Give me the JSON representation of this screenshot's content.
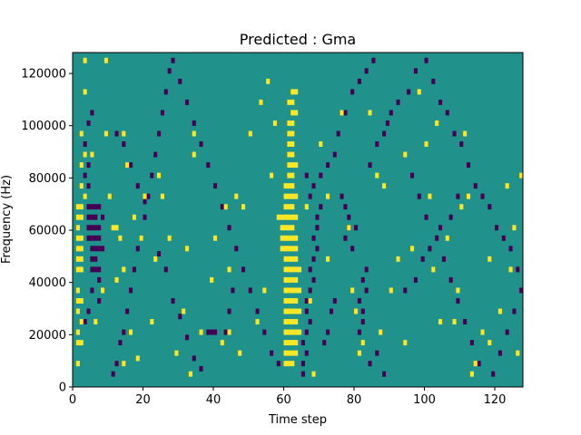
{
  "chart_data": {
    "type": "heatmap",
    "title": "Predicted : Gma",
    "xlabel": "Time step",
    "ylabel": "Frequency (Hz)",
    "xlim": [
      0,
      128
    ],
    "ylim": [
      0,
      128000
    ],
    "x_ticks": [
      0,
      20,
      40,
      60,
      80,
      100,
      120
    ],
    "y_ticks": [
      0,
      20000,
      40000,
      60000,
      80000,
      100000,
      120000
    ],
    "y_tick_labels": [
      "0",
      "20000",
      "40000",
      "60000",
      "80000",
      "100000",
      "120000"
    ],
    "grid": false,
    "value_levels": [
      -1,
      0,
      1
    ],
    "colormap": "viridis",
    "colors": {
      "low": "#440154",
      "mid": "#21918c",
      "high": "#fde725"
    },
    "background_value": 0,
    "rows": 64,
    "cols": 128,
    "cell_height_hz": 2000,
    "high_cells": [
      [
        60,
        4
      ],
      [
        61,
        4
      ],
      [
        62,
        4
      ],
      [
        60,
        6
      ],
      [
        61,
        6
      ],
      [
        62,
        6
      ],
      [
        63,
        6
      ],
      [
        60,
        8
      ],
      [
        61,
        8
      ],
      [
        62,
        8
      ],
      [
        63,
        8
      ],
      [
        60,
        10
      ],
      [
        61,
        10
      ],
      [
        62,
        10
      ],
      [
        63,
        10
      ],
      [
        64,
        10
      ],
      [
        60,
        12
      ],
      [
        61,
        12
      ],
      [
        62,
        12
      ],
      [
        63,
        12
      ],
      [
        60,
        14
      ],
      [
        61,
        14
      ],
      [
        62,
        14
      ],
      [
        63,
        14
      ],
      [
        64,
        14
      ],
      [
        60,
        16
      ],
      [
        61,
        16
      ],
      [
        62,
        16
      ],
      [
        63,
        16
      ],
      [
        60,
        18
      ],
      [
        61,
        18
      ],
      [
        62,
        18
      ],
      [
        63,
        18
      ],
      [
        64,
        18
      ],
      [
        60,
        20
      ],
      [
        61,
        20
      ],
      [
        62,
        20
      ],
      [
        63,
        20
      ],
      [
        60,
        22
      ],
      [
        61,
        22
      ],
      [
        62,
        22
      ],
      [
        63,
        22
      ],
      [
        64,
        22
      ],
      [
        60,
        24
      ],
      [
        61,
        24
      ],
      [
        62,
        24
      ],
      [
        63,
        24
      ],
      [
        59,
        26
      ],
      [
        60,
        26
      ],
      [
        61,
        26
      ],
      [
        62,
        26
      ],
      [
        63,
        26
      ],
      [
        59,
        28
      ],
      [
        60,
        28
      ],
      [
        61,
        28
      ],
      [
        62,
        28
      ],
      [
        63,
        28
      ],
      [
        59,
        30
      ],
      [
        60,
        30
      ],
      [
        61,
        30
      ],
      [
        62,
        30
      ],
      [
        59,
        32
      ],
      [
        60,
        32
      ],
      [
        61,
        32
      ],
      [
        62,
        32
      ],
      [
        63,
        32
      ],
      [
        60,
        34
      ],
      [
        61,
        34
      ],
      [
        62,
        34
      ],
      [
        60,
        36
      ],
      [
        61,
        36
      ],
      [
        62,
        36
      ],
      [
        63,
        36
      ],
      [
        60,
        38
      ],
      [
        61,
        38
      ],
      [
        62,
        38
      ],
      [
        61,
        40
      ],
      [
        62,
        40
      ],
      [
        61,
        42
      ],
      [
        62,
        42
      ],
      [
        63,
        42
      ],
      [
        61,
        44
      ],
      [
        62,
        44
      ],
      [
        61,
        46
      ],
      [
        62,
        46
      ],
      [
        61,
        48
      ],
      [
        62,
        48
      ],
      [
        61,
        50
      ],
      [
        62,
        50
      ],
      [
        62,
        52
      ],
      [
        63,
        52
      ],
      [
        61,
        54
      ],
      [
        62,
        54
      ],
      [
        62,
        56
      ],
      [
        63,
        56
      ],
      [
        1,
        4
      ],
      [
        1,
        8
      ],
      [
        2,
        8
      ],
      [
        1,
        10
      ],
      [
        2,
        12
      ],
      [
        1,
        14
      ],
      [
        1,
        16
      ],
      [
        2,
        16
      ],
      [
        1,
        18
      ],
      [
        1,
        22
      ],
      [
        2,
        22
      ],
      [
        1,
        24
      ],
      [
        2,
        24
      ],
      [
        1,
        26
      ],
      [
        2,
        26
      ],
      [
        1,
        28
      ],
      [
        2,
        28
      ],
      [
        1,
        30
      ],
      [
        1,
        32
      ],
      [
        2,
        32
      ],
      [
        1,
        34
      ],
      [
        2,
        34
      ],
      [
        3,
        36
      ],
      [
        2,
        38
      ],
      [
        2,
        42
      ],
      [
        3,
        44
      ],
      [
        2,
        48
      ],
      [
        3,
        56
      ],
      [
        6,
        12
      ],
      [
        9,
        48
      ],
      [
        9,
        62
      ],
      [
        11,
        30
      ],
      [
        12,
        30
      ],
      [
        13,
        28
      ],
      [
        14,
        22
      ],
      [
        14,
        4
      ],
      [
        15,
        42
      ],
      [
        14,
        48
      ],
      [
        16,
        10
      ],
      [
        17,
        32
      ],
      [
        18,
        5
      ],
      [
        19,
        28
      ],
      [
        20,
        36
      ],
      [
        22,
        12
      ],
      [
        23,
        24
      ],
      [
        24,
        40
      ],
      [
        25,
        36
      ],
      [
        27,
        28
      ],
      [
        29,
        6
      ],
      [
        31,
        14
      ],
      [
        32,
        26
      ],
      [
        33,
        2
      ],
      [
        34,
        44
      ],
      [
        36,
        10
      ],
      [
        39,
        20
      ],
      [
        40,
        28
      ],
      [
        42,
        8
      ],
      [
        44,
        22
      ],
      [
        46,
        36
      ],
      [
        48,
        34
      ],
      [
        50,
        48
      ],
      [
        52,
        12
      ],
      [
        55,
        58
      ],
      [
        56,
        40
      ],
      [
        58,
        32
      ],
      [
        60,
        26
      ],
      [
        67,
        16
      ],
      [
        70,
        46
      ],
      [
        72,
        36
      ],
      [
        76,
        52
      ],
      [
        78,
        30
      ],
      [
        80,
        14
      ],
      [
        82,
        8
      ],
      [
        84,
        52
      ],
      [
        86,
        40
      ],
      [
        88,
        38
      ],
      [
        90,
        18
      ],
      [
        92,
        24
      ],
      [
        94,
        44
      ],
      [
        96,
        26
      ],
      [
        98,
        56
      ],
      [
        100,
        46
      ],
      [
        102,
        22
      ],
      [
        103,
        50
      ],
      [
        106,
        28
      ],
      [
        108,
        12
      ],
      [
        110,
        34
      ],
      [
        112,
        36
      ],
      [
        114,
        4
      ],
      [
        116,
        10
      ],
      [
        118,
        24
      ],
      [
        121,
        14
      ],
      [
        123,
        38
      ],
      [
        124,
        22
      ],
      [
        125,
        30
      ],
      [
        126,
        6
      ],
      [
        3,
        62
      ],
      [
        5,
        44
      ],
      [
        8,
        18
      ],
      [
        10,
        36
      ],
      [
        12,
        20
      ],
      [
        34,
        48
      ],
      [
        43,
        34
      ],
      [
        44,
        10
      ],
      [
        47,
        6
      ],
      [
        53,
        54
      ],
      [
        54,
        18
      ],
      [
        57,
        50
      ],
      [
        66,
        34
      ],
      [
        68,
        2
      ],
      [
        72,
        24
      ],
      [
        79,
        18
      ],
      [
        81,
        6
      ],
      [
        87,
        10
      ],
      [
        94,
        8
      ],
      [
        101,
        36
      ],
      [
        104,
        12
      ],
      [
        109,
        18
      ],
      [
        111,
        48
      ],
      [
        113,
        2
      ],
      [
        118,
        8
      ],
      [
        127,
        40
      ]
    ],
    "low_cells": [
      [
        4,
        34
      ],
      [
        5,
        34
      ],
      [
        6,
        34
      ],
      [
        7,
        34
      ],
      [
        4,
        32
      ],
      [
        5,
        32
      ],
      [
        6,
        32
      ],
      [
        4,
        30
      ],
      [
        5,
        30
      ],
      [
        6,
        30
      ],
      [
        4,
        28
      ],
      [
        5,
        28
      ],
      [
        6,
        28
      ],
      [
        7,
        28
      ],
      [
        5,
        26
      ],
      [
        6,
        26
      ],
      [
        7,
        26
      ],
      [
        5,
        24
      ],
      [
        6,
        24
      ],
      [
        5,
        22
      ],
      [
        6,
        22
      ],
      [
        7,
        22
      ],
      [
        7,
        20
      ],
      [
        7,
        30
      ],
      [
        8,
        32
      ],
      [
        8,
        26
      ],
      [
        4,
        38
      ],
      [
        3,
        40
      ],
      [
        4,
        42
      ],
      [
        3,
        46
      ],
      [
        4,
        50
      ],
      [
        5,
        52
      ],
      [
        3,
        12
      ],
      [
        4,
        14
      ],
      [
        7,
        16
      ],
      [
        5,
        18
      ],
      [
        65,
        2
      ],
      [
        65,
        4
      ],
      [
        66,
        6
      ],
      [
        65,
        8
      ],
      [
        66,
        10
      ],
      [
        67,
        12
      ],
      [
        66,
        14
      ],
      [
        66,
        16
      ],
      [
        67,
        18
      ],
      [
        68,
        20
      ],
      [
        67,
        22
      ],
      [
        68,
        24
      ],
      [
        69,
        26
      ],
      [
        68,
        28
      ],
      [
        69,
        30
      ],
      [
        69,
        32
      ],
      [
        70,
        34
      ],
      [
        67,
        36
      ],
      [
        68,
        38
      ],
      [
        66,
        40
      ],
      [
        77,
        28
      ],
      [
        78,
        30
      ],
      [
        78,
        32
      ],
      [
        77,
        34
      ],
      [
        76,
        36
      ],
      [
        81,
        10
      ],
      [
        82,
        12
      ],
      [
        82,
        14
      ],
      [
        81,
        16
      ],
      [
        83,
        18
      ],
      [
        82,
        20
      ],
      [
        83,
        22
      ],
      [
        79,
        26
      ],
      [
        80,
        30
      ],
      [
        84,
        42
      ],
      [
        86,
        46
      ],
      [
        88,
        48
      ],
      [
        89,
        50
      ],
      [
        90,
        52
      ],
      [
        92,
        54
      ],
      [
        95,
        56
      ],
      [
        97,
        60
      ],
      [
        100,
        62
      ],
      [
        102,
        58
      ],
      [
        104,
        54
      ],
      [
        106,
        52
      ],
      [
        108,
        48
      ],
      [
        110,
        46
      ],
      [
        112,
        42
      ],
      [
        114,
        38
      ],
      [
        116,
        36
      ],
      [
        118,
        34
      ],
      [
        120,
        30
      ],
      [
        122,
        28
      ],
      [
        124,
        26
      ],
      [
        126,
        22
      ],
      [
        127,
        18
      ],
      [
        125,
        14
      ],
      [
        123,
        10
      ],
      [
        121,
        6
      ],
      [
        119,
        2
      ],
      [
        11,
        2
      ],
      [
        12,
        4
      ],
      [
        13,
        8
      ],
      [
        14,
        10
      ],
      [
        15,
        14
      ],
      [
        16,
        18
      ],
      [
        17,
        22
      ],
      [
        18,
        26
      ],
      [
        19,
        28
      ],
      [
        20,
        32
      ],
      [
        21,
        36
      ],
      [
        22,
        40
      ],
      [
        23,
        44
      ],
      [
        24,
        48
      ],
      [
        25,
        52
      ],
      [
        26,
        56
      ],
      [
        27,
        60
      ],
      [
        28,
        62
      ],
      [
        30,
        58
      ],
      [
        32,
        54
      ],
      [
        34,
        50
      ],
      [
        36,
        46
      ],
      [
        38,
        42
      ],
      [
        40,
        38
      ],
      [
        42,
        34
      ],
      [
        44,
        30
      ],
      [
        46,
        26
      ],
      [
        48,
        22
      ],
      [
        50,
        18
      ],
      [
        52,
        14
      ],
      [
        54,
        10
      ],
      [
        56,
        6
      ],
      [
        58,
        4
      ],
      [
        38,
        10
      ],
      [
        39,
        10
      ],
      [
        40,
        10
      ],
      [
        43,
        10
      ],
      [
        44,
        14
      ],
      [
        45,
        18
      ],
      [
        12,
        48
      ],
      [
        14,
        46
      ],
      [
        16,
        42
      ],
      [
        18,
        38
      ],
      [
        20,
        35
      ],
      [
        24,
        25
      ],
      [
        26,
        22
      ],
      [
        28,
        16
      ],
      [
        30,
        13
      ],
      [
        32,
        9
      ],
      [
        34,
        5
      ],
      [
        36,
        3
      ],
      [
        70,
        40
      ],
      [
        72,
        42
      ],
      [
        74,
        44
      ],
      [
        75,
        48
      ],
      [
        77,
        52
      ],
      [
        79,
        56
      ],
      [
        81,
        58
      ],
      [
        83,
        60
      ],
      [
        85,
        62
      ],
      [
        96,
        40
      ],
      [
        98,
        36
      ],
      [
        100,
        32
      ],
      [
        103,
        28
      ],
      [
        105,
        24
      ],
      [
        107,
        20
      ],
      [
        109,
        16
      ],
      [
        111,
        12
      ],
      [
        113,
        8
      ],
      [
        115,
        4
      ],
      [
        71,
        8
      ],
      [
        72,
        10
      ],
      [
        73,
        14
      ],
      [
        74,
        16
      ],
      [
        84,
        4
      ],
      [
        86,
        6
      ],
      [
        88,
        2
      ],
      [
        94,
        18
      ],
      [
        97,
        20
      ],
      [
        99,
        24
      ],
      [
        101,
        26
      ],
      [
        104,
        30
      ],
      [
        107,
        32
      ],
      [
        109,
        36
      ]
    ]
  }
}
